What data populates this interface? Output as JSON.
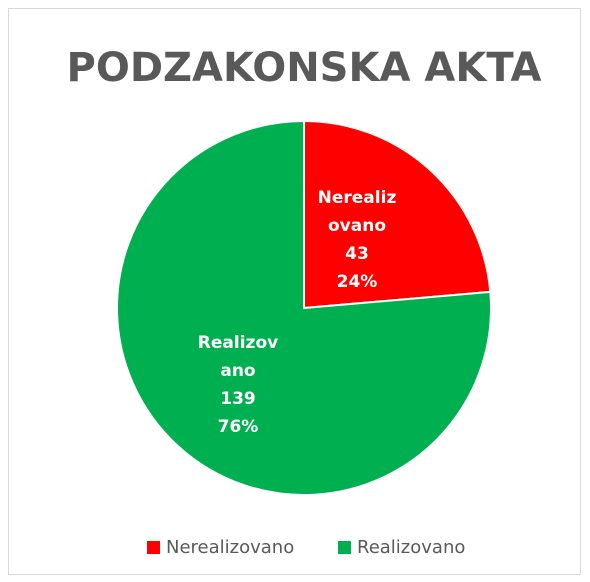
{
  "chart_data": {
    "type": "pie",
    "title": "PODZAKONSKA AKTA",
    "categories": [
      "Nerealizovano",
      "Realizovano"
    ],
    "values": [
      43,
      139
    ],
    "percentages": [
      24,
      76
    ],
    "percentage_labels": [
      "24%",
      "76%"
    ],
    "colors": [
      "#ff0000",
      "#00b050"
    ],
    "legend": "bottom"
  }
}
